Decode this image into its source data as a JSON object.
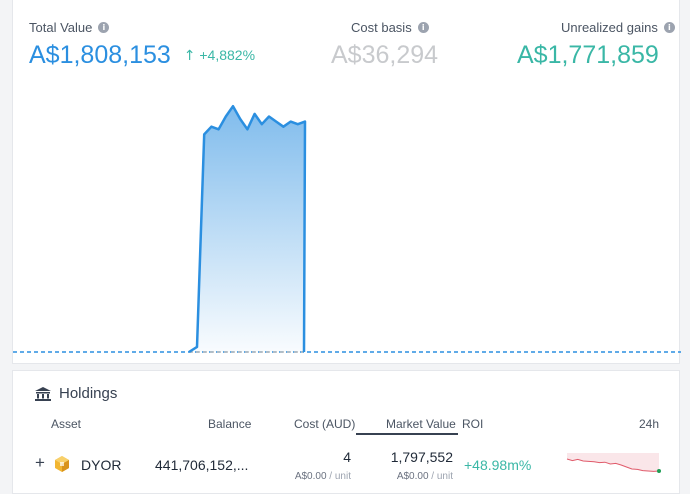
{
  "summary": {
    "total_value_label": "Total Value",
    "total_value": "A$1,808,153",
    "total_change": "+4,882%",
    "cost_basis_label": "Cost basis",
    "cost_basis": "A$36,294",
    "unrealized_label": "Unrealized gains",
    "unrealized": "A$1,771,859"
  },
  "colors": {
    "total": "#2b8fe0",
    "cost": "#c8cacd",
    "gains": "#3ab7a6",
    "chart_line": "#2b8fe0",
    "spark_line": "#e05a6a"
  },
  "icons": {
    "info": "info-icon",
    "up_arrow": "arrow-up-icon",
    "bank": "bank-icon",
    "expand": "plus-icon",
    "token": "dyor-token-icon"
  },
  "chart_series": [
    0,
    0,
    0,
    0,
    0,
    0,
    0,
    0,
    0,
    0,
    0,
    0,
    0,
    0,
    0,
    0,
    0,
    0,
    0,
    0.02,
    0.85,
    0.88,
    0.87,
    0.92,
    0.96,
    0.91,
    0.87,
    0.93,
    0.89,
    0.92,
    0.9,
    0.88,
    0.9,
    0.89,
    0.9,
    0,
    0,
    0,
    0,
    0,
    0,
    0,
    0,
    0,
    0,
    0,
    0,
    0,
    0,
    0,
    0,
    0,
    0,
    0,
    0,
    0,
    0,
    0,
    0,
    0,
    0,
    0,
    0,
    0,
    0,
    0,
    0,
    0,
    0,
    0,
    0,
    0,
    0
  ],
  "holdings": {
    "title": "Holdings",
    "columns": {
      "asset": "Asset",
      "balance": "Balance",
      "cost": "Cost (AUD)",
      "market_value": "Market Value",
      "roi": "ROI",
      "h24": "24h"
    },
    "rows": [
      {
        "expand": "+",
        "symbol": "DYOR",
        "balance": "441,706,152,...",
        "cost": "4",
        "cost_unit": "A$0.00",
        "market_value": "1,797,552",
        "mv_unit": "A$0.00",
        "unit_suffix": " / unit",
        "roi": "+48.98m%",
        "spark": [
          0.8,
          0.72,
          0.78,
          0.7,
          0.68,
          0.66,
          0.62,
          0.64,
          0.55,
          0.58,
          0.5,
          0.4,
          0.3,
          0.28,
          0.22,
          0.2,
          0.18,
          0.2
        ]
      }
    ]
  }
}
